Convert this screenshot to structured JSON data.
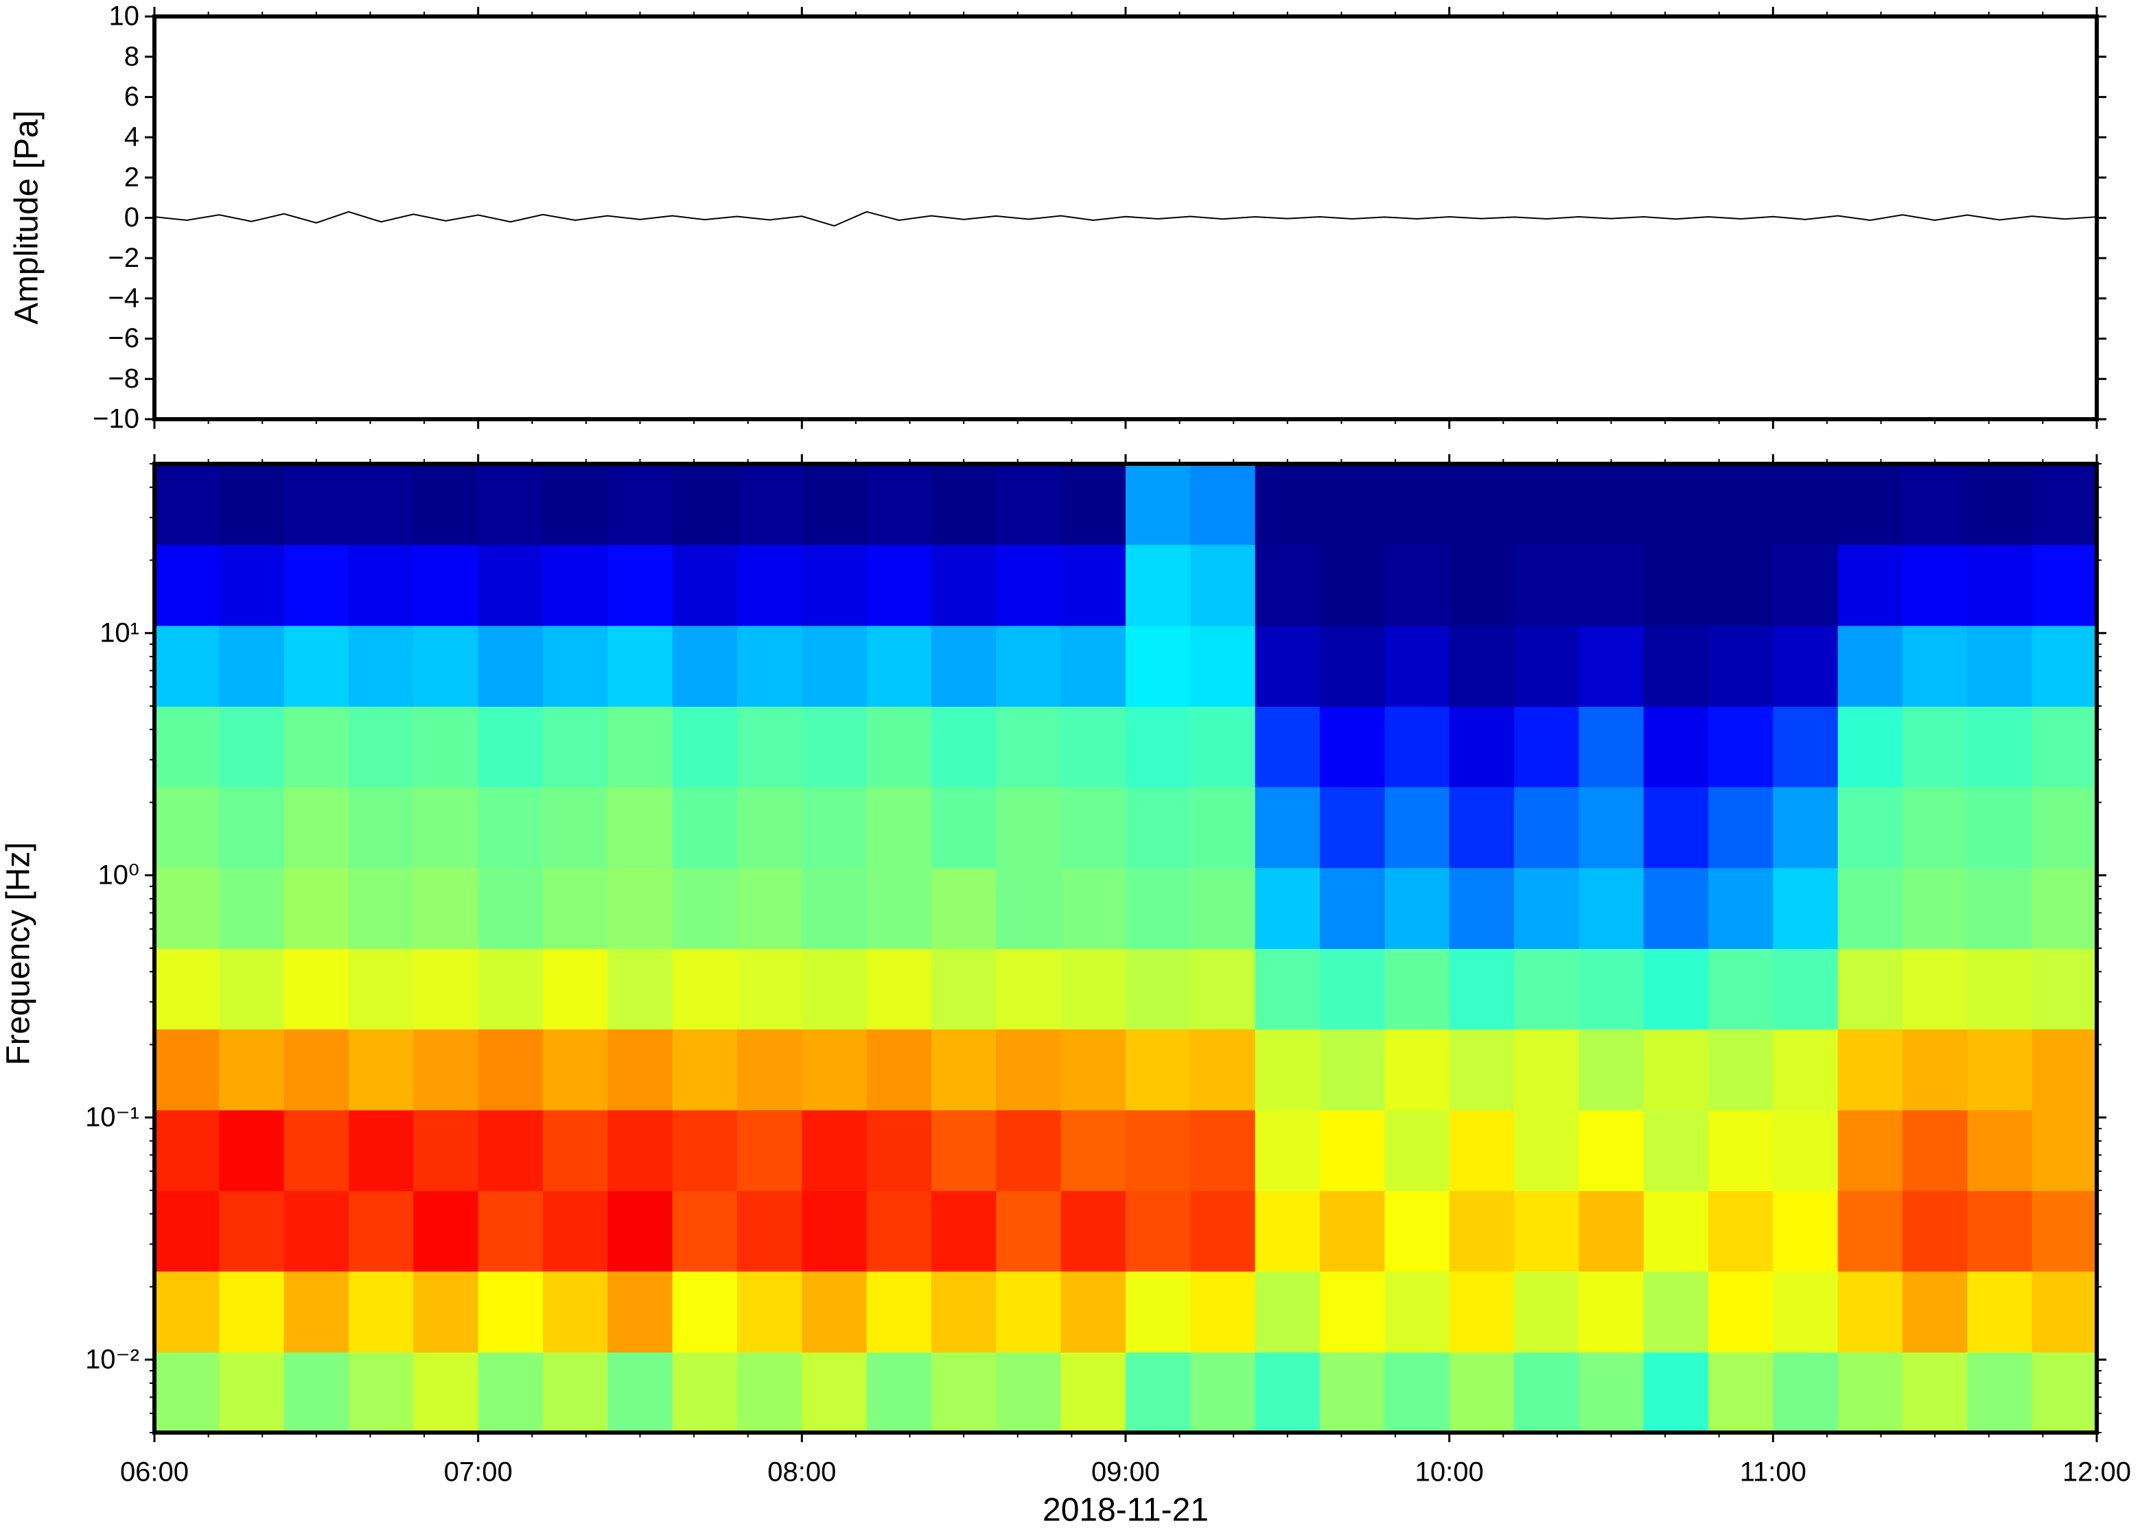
{
  "chart_data": [
    {
      "type": "line",
      "ylabel": "Amplitude [Pa]",
      "xlim": [
        6,
        12
      ],
      "xticks": [
        {
          "value": 6,
          "label": "06:00"
        },
        {
          "value": 7,
          "label": "07:00"
        },
        {
          "value": 8,
          "label": "08:00"
        },
        {
          "value": 9,
          "label": "09:00"
        },
        {
          "value": 10,
          "label": "10:00"
        },
        {
          "value": 11,
          "label": "11:00"
        },
        {
          "value": 12,
          "label": "12:00"
        }
      ],
      "ylim": [
        -10,
        10
      ],
      "yticks": [
        {
          "value": -10,
          "label": "−10"
        },
        {
          "value": -8,
          "label": "−8"
        },
        {
          "value": -6,
          "label": "−6"
        },
        {
          "value": -4,
          "label": "−4"
        },
        {
          "value": -2,
          "label": "−2"
        },
        0,
        2,
        4,
        6,
        8,
        10
      ],
      "x": [
        6.0,
        6.1,
        6.2,
        6.3,
        6.4,
        6.5,
        6.6,
        6.7,
        6.8,
        6.9,
        7.0,
        7.1,
        7.2,
        7.3,
        7.4,
        7.5,
        7.6,
        7.7,
        7.8,
        7.9,
        8.0,
        8.1,
        8.2,
        8.3,
        8.4,
        8.5,
        8.6,
        8.7,
        8.8,
        8.9,
        9.0,
        9.1,
        9.2,
        9.3,
        9.4,
        9.5,
        9.6,
        9.7,
        9.8,
        9.9,
        10.0,
        10.1,
        10.2,
        10.3,
        10.4,
        10.5,
        10.6,
        10.7,
        10.8,
        10.9,
        11.0,
        11.1,
        11.2,
        11.3,
        11.4,
        11.5,
        11.6,
        11.7,
        11.8,
        11.9,
        12.0
      ],
      "series": [
        {
          "color": "#000000",
          "values": [
            0.05,
            -0.12,
            0.15,
            -0.18,
            0.2,
            -0.25,
            0.3,
            -0.2,
            0.18,
            -0.15,
            0.14,
            -0.2,
            0.16,
            -0.12,
            0.1,
            -0.08,
            0.1,
            -0.09,
            0.07,
            -0.1,
            0.08,
            -0.4,
            0.3,
            -0.12,
            0.1,
            -0.08,
            0.09,
            -0.07,
            0.1,
            -0.12,
            0.06,
            -0.05,
            0.07,
            -0.06,
            0.05,
            -0.04,
            0.05,
            -0.05,
            0.04,
            -0.05,
            0.05,
            -0.04,
            0.04,
            -0.05,
            0.05,
            -0.04,
            0.05,
            -0.06,
            0.05,
            -0.05,
            0.06,
            -0.08,
            0.1,
            -0.12,
            0.15,
            -0.12,
            0.14,
            -0.1,
            0.08,
            -0.06,
            0.05
          ]
        }
      ]
    },
    {
      "type": "heatmap",
      "ylabel": "Frequency [Hz]",
      "xlabel": "2018-11-21",
      "xlim": [
        6,
        12
      ],
      "xticks": [
        {
          "value": 6,
          "label": "06:00"
        },
        {
          "value": 7,
          "label": "07:00"
        },
        {
          "value": 8,
          "label": "08:00"
        },
        {
          "value": 9,
          "label": "09:00"
        },
        {
          "value": 10,
          "label": "10:00"
        },
        {
          "value": 11,
          "label": "11:00"
        },
        {
          "value": 12,
          "label": "12:00"
        }
      ],
      "ylim": [
        0.005,
        50
      ],
      "log_y": true,
      "yticks": [
        {
          "value": 0.01,
          "label": "10⁻²"
        },
        {
          "value": 0.1,
          "label": "10⁻¹"
        },
        {
          "value": 1,
          "label": "10⁰"
        },
        {
          "value": 10,
          "label": "10¹"
        }
      ],
      "colormap": "jet",
      "zlim": [
        0,
        10
      ],
      "x": [
        6.1,
        6.3,
        6.5,
        6.7,
        6.9,
        7.1,
        7.3,
        7.5,
        7.7,
        7.9,
        8.1,
        8.3,
        8.5,
        8.7,
        8.9,
        9.1,
        9.3,
        9.5,
        9.7,
        9.9,
        10.1,
        10.3,
        10.5,
        10.7,
        10.9,
        11.1,
        11.3,
        11.5,
        11.7,
        11.9
      ],
      "y": [
        0.0073,
        0.0158,
        0.034,
        0.073,
        0.158,
        0.34,
        0.73,
        1.58,
        3.4,
        7.3,
        15.8,
        34
      ],
      "values": [
        [
          5.2,
          5.6,
          5.0,
          5.4,
          5.8,
          5.1,
          5.5,
          4.9,
          5.6,
          5.3,
          5.7,
          5.0,
          5.4,
          5.2,
          5.8,
          4.6,
          5.0,
          4.4,
          5.2,
          4.8,
          5.3,
          4.7,
          5.0,
          4.2,
          5.4,
          4.9,
          5.3,
          5.6,
          5.1,
          5.5
        ],
        [
          6.8,
          6.4,
          7.0,
          6.5,
          6.9,
          6.3,
          6.7,
          7.2,
          6.2,
          6.6,
          7.0,
          6.4,
          6.8,
          6.5,
          6.9,
          6.1,
          6.4,
          5.6,
          6.2,
          5.9,
          6.4,
          5.8,
          6.1,
          5.5,
          6.3,
          6.0,
          6.6,
          7.1,
          6.5,
          6.8
        ],
        [
          8.6,
          8.3,
          8.5,
          8.2,
          8.7,
          8.1,
          8.4,
          8.8,
          8.0,
          8.3,
          8.6,
          8.2,
          8.5,
          7.9,
          8.4,
          8.0,
          8.2,
          6.4,
          6.8,
          6.2,
          6.7,
          6.5,
          6.9,
          6.1,
          6.6,
          6.3,
          7.7,
          8.1,
          7.9,
          7.6
        ],
        [
          8.4,
          8.7,
          8.2,
          8.6,
          8.3,
          8.5,
          8.1,
          8.4,
          8.2,
          8.0,
          8.5,
          8.3,
          7.9,
          8.2,
          7.8,
          7.9,
          8.0,
          6.0,
          6.3,
          5.8,
          6.4,
          5.9,
          6.2,
          5.7,
          6.1,
          6.0,
          7.4,
          7.8,
          7.3,
          7.1
        ],
        [
          7.4,
          7.1,
          7.3,
          7.0,
          7.2,
          7.4,
          7.1,
          7.3,
          7.0,
          7.2,
          7.1,
          7.3,
          7.0,
          7.2,
          7.1,
          6.8,
          6.9,
          5.8,
          5.6,
          6.0,
          5.7,
          5.9,
          5.5,
          5.8,
          5.6,
          5.9,
          6.8,
          7.0,
          6.9,
          7.1
        ],
        [
          6.0,
          5.8,
          6.1,
          5.9,
          6.0,
          5.8,
          6.1,
          5.7,
          6.0,
          5.9,
          5.8,
          6.0,
          5.7,
          5.9,
          5.8,
          5.6,
          5.7,
          4.6,
          4.4,
          4.7,
          4.3,
          4.6,
          4.5,
          4.2,
          4.6,
          4.5,
          5.7,
          5.9,
          5.8,
          5.7
        ],
        [
          5.2,
          5.0,
          5.3,
          5.1,
          5.2,
          4.9,
          5.1,
          5.2,
          5.0,
          5.1,
          4.9,
          5.0,
          5.2,
          4.9,
          5.0,
          4.8,
          4.9,
          3.2,
          2.6,
          3.0,
          2.5,
          2.9,
          3.1,
          2.4,
          2.8,
          3.3,
          4.8,
          5.0,
          4.9,
          5.1
        ],
        [
          5.0,
          4.8,
          5.1,
          4.9,
          5.0,
          4.8,
          4.9,
          5.1,
          4.7,
          4.9,
          4.8,
          5.0,
          4.7,
          4.9,
          4.8,
          4.6,
          4.7,
          2.6,
          1.8,
          2.4,
          1.7,
          2.3,
          2.6,
          1.6,
          2.2,
          2.8,
          4.6,
          4.8,
          4.7,
          4.9
        ],
        [
          4.7,
          4.5,
          4.8,
          4.6,
          4.7,
          4.4,
          4.6,
          4.8,
          4.4,
          4.6,
          4.5,
          4.7,
          4.4,
          4.6,
          4.5,
          4.3,
          4.4,
          1.8,
          1.2,
          1.6,
          1.0,
          1.5,
          2.2,
          1.1,
          1.4,
          1.9,
          4.2,
          4.5,
          4.4,
          4.6
        ],
        [
          3.2,
          3.0,
          3.3,
          3.1,
          3.2,
          2.9,
          3.1,
          3.3,
          2.9,
          3.1,
          3.0,
          3.2,
          2.9,
          3.1,
          3.0,
          3.6,
          3.5,
          0.6,
          0.4,
          0.7,
          0.3,
          0.5,
          0.8,
          0.3,
          0.5,
          0.7,
          2.8,
          3.1,
          3.0,
          3.2
        ],
        [
          1.2,
          1.0,
          1.3,
          1.1,
          1.2,
          0.9,
          1.1,
          1.3,
          0.9,
          1.1,
          1.0,
          1.2,
          0.9,
          1.1,
          1.0,
          3.4,
          3.2,
          0.2,
          0.1,
          0.2,
          0.1,
          0.2,
          0.2,
          0.1,
          0.1,
          0.2,
          1.0,
          1.2,
          1.1,
          1.3
        ],
        [
          0.2,
          0.1,
          0.2,
          0.2,
          0.1,
          0.2,
          0.1,
          0.2,
          0.1,
          0.2,
          0.1,
          0.2,
          0.1,
          0.2,
          0.1,
          2.8,
          2.6,
          0.1,
          0.1,
          0.1,
          0.1,
          0.1,
          0.1,
          0.1,
          0.1,
          0.1,
          0.1,
          0.2,
          0.1,
          0.2
        ]
      ]
    }
  ]
}
